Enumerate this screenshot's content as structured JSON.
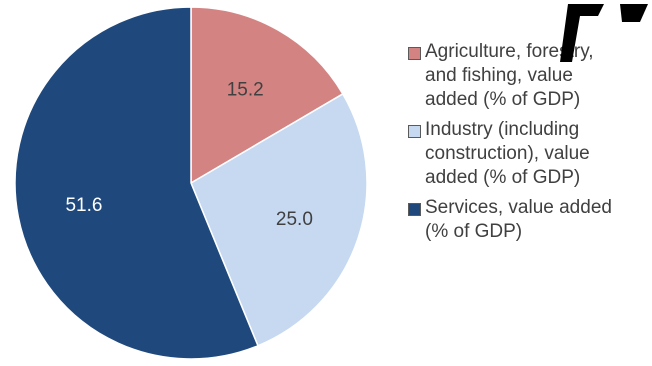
{
  "chart_data": {
    "type": "pie",
    "title": "",
    "slices": [
      {
        "name": "Agriculture, forestry, and fishing, value added (% of GDP)",
        "value": 15.2,
        "label": "15.2",
        "color": "#d38482"
      },
      {
        "name": "Industry (including construction), value added (% of GDP)",
        "value": 25.0,
        "label": "25.0",
        "color": "#c6d9f1"
      },
      {
        "name": "Services, value added (% of GDP)",
        "value": 51.6,
        "label": "51.6",
        "color": "#1f497d"
      }
    ],
    "label_colors": [
      "#404040",
      "#404040",
      "#ffffff"
    ],
    "legend_position": "right",
    "legend": [
      {
        "lines": [
          "Agriculture, forestry,",
          "and fishing, value",
          "added (% of GDP)"
        ]
      },
      {
        "lines": [
          "Industry (including",
          "construction), value",
          "added (% of GDP)"
        ]
      },
      {
        "lines": [
          "Services, value added",
          "(% of GDP)"
        ]
      }
    ]
  },
  "colors": {
    "slice_border": "#ffffff",
    "watermark": "#000000"
  }
}
